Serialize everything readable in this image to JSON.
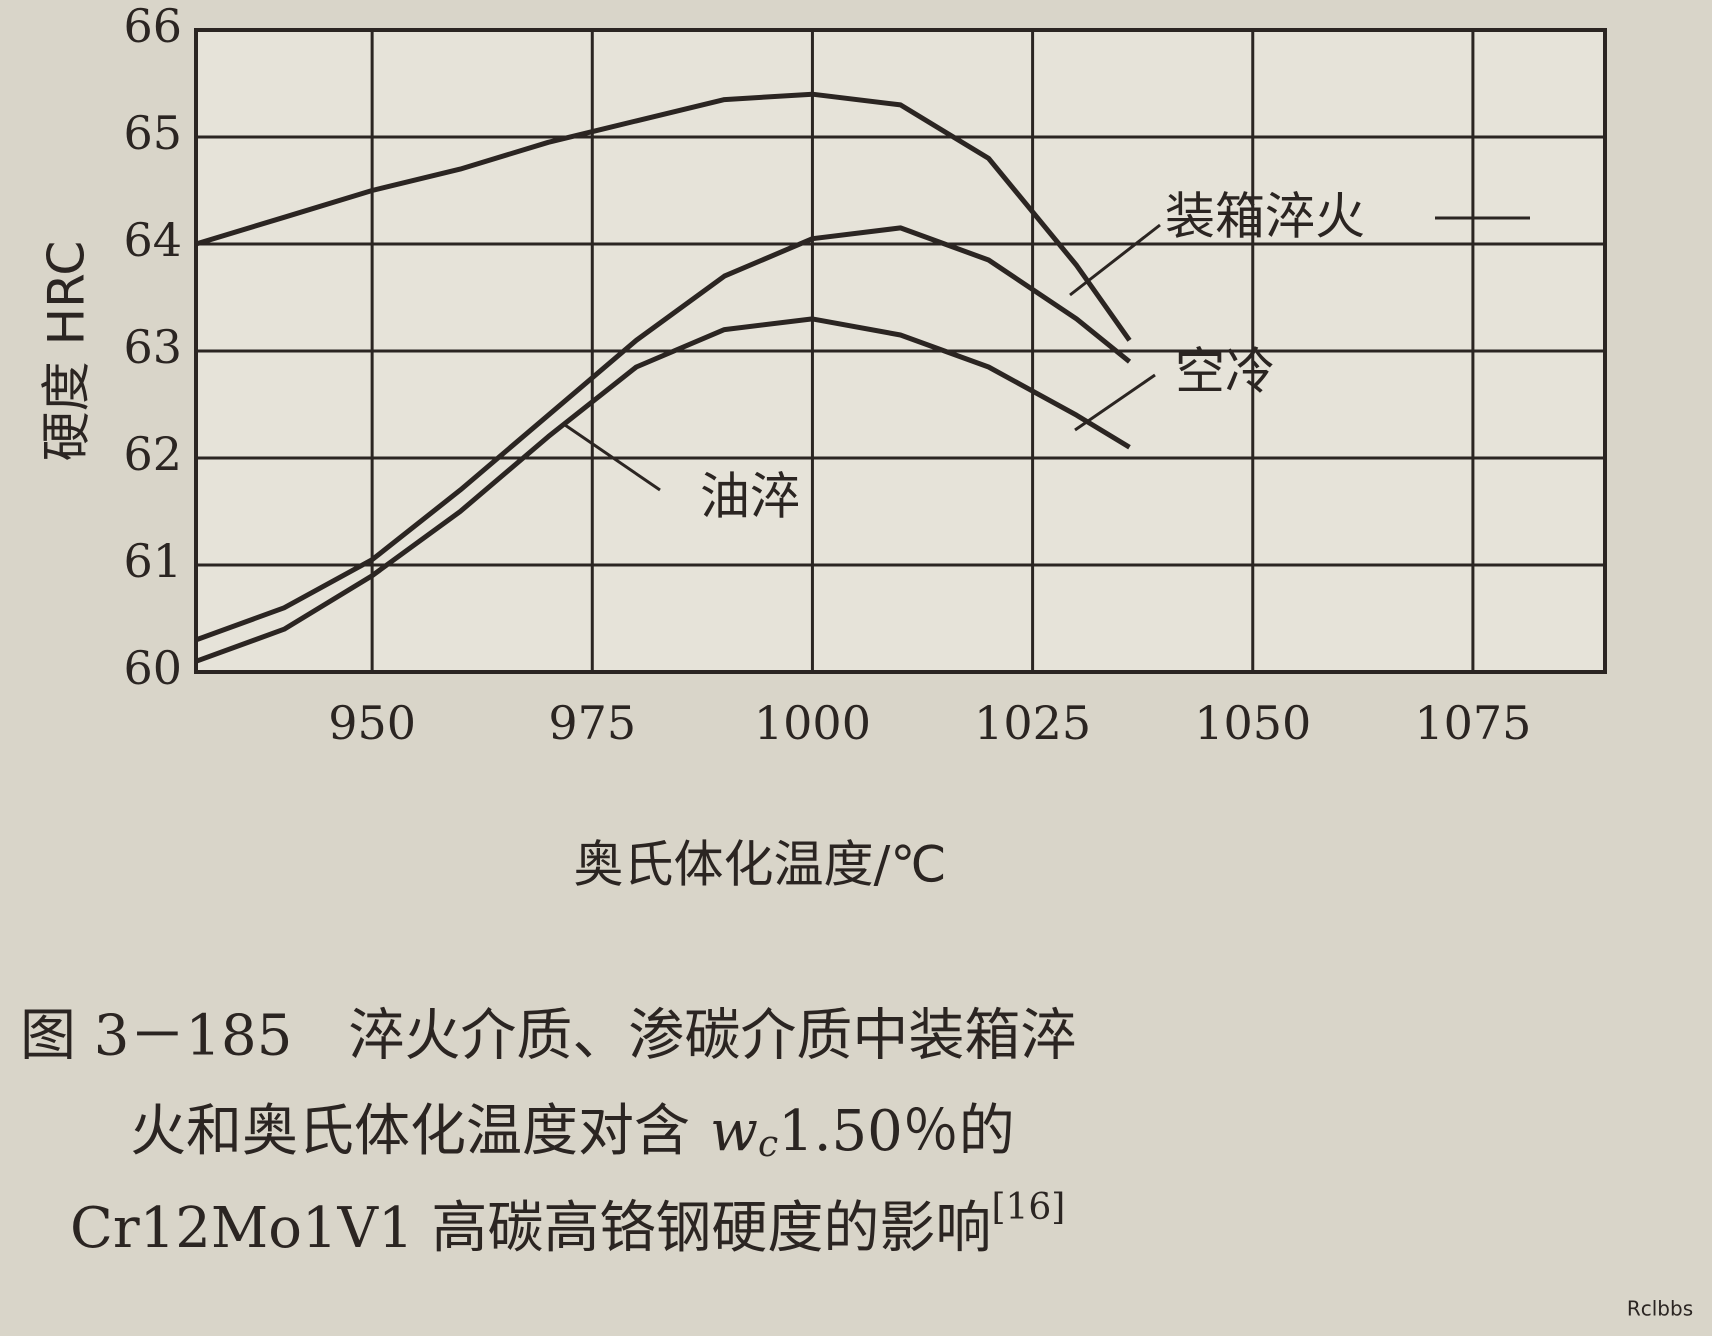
{
  "chart_data": {
    "type": "line",
    "x": [
      930,
      940,
      950,
      960,
      970,
      980,
      990,
      1000,
      1010,
      1020,
      1030,
      1036
    ],
    "series": [
      {
        "name": "装箱淬火",
        "color": "#2b2522",
        "values": [
          64.0,
          64.25,
          64.5,
          64.7,
          64.95,
          65.15,
          65.35,
          65.4,
          65.3,
          64.8,
          63.8,
          63.1
        ]
      },
      {
        "name": "空冷",
        "color": "#2b2522",
        "values": [
          60.3,
          60.6,
          61.05,
          61.7,
          62.4,
          63.1,
          63.7,
          64.05,
          64.15,
          63.85,
          63.3,
          62.9
        ]
      },
      {
        "name": "油淬",
        "color": "#2b2522",
        "values": [
          60.1,
          60.4,
          60.9,
          61.5,
          62.2,
          62.85,
          63.2,
          63.3,
          63.15,
          62.85,
          62.4,
          62.1
        ]
      }
    ],
    "xlim": [
      930,
      1090
    ],
    "xticks": [
      950,
      975,
      1000,
      1025,
      1050,
      1075
    ],
    "ylim": [
      60,
      66
    ],
    "yticks": [
      60,
      61,
      62,
      63,
      64,
      65,
      66
    ],
    "grid": true,
    "ylabel": "硬度 HRC",
    "xlabel": "奥氏体化温度/℃",
    "caption": [
      "图 3－185　淬火介质、渗碳介质中装箱淬",
      "火和奥氏体化温度对含",
      "w",
      "c",
      "1.50％的",
      "Cr12Mo1V1 高碳高铬钢硬度的影响",
      "[16]"
    ],
    "watermark": "Rclbbs"
  }
}
